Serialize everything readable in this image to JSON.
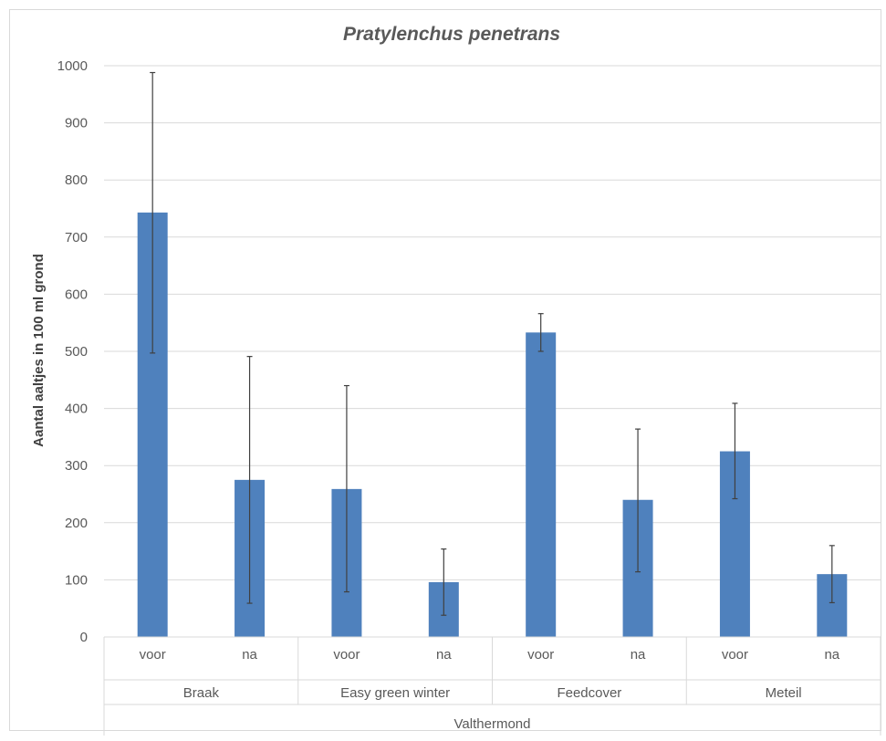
{
  "chart_data": {
    "type": "bar",
    "title": "Pratylenchus penetrans",
    "ylabel": "Aantal aaltjes in 100 ml grond",
    "xlabel": "",
    "ylim": [
      0,
      1000
    ],
    "yticks": [
      0,
      100,
      200,
      300,
      400,
      500,
      600,
      700,
      800,
      900,
      1000
    ],
    "grid": true,
    "legend": "none",
    "bar_color": "#4F81BD",
    "location": "Valthermond",
    "groups": [
      {
        "name": "Braak",
        "bars": [
          {
            "label": "voor",
            "value": 743,
            "err_low": 497,
            "err_high": 988
          },
          {
            "label": "na",
            "value": 275,
            "err_low": 59,
            "err_high": 491
          }
        ]
      },
      {
        "name": "Easy green winter",
        "bars": [
          {
            "label": "voor",
            "value": 259,
            "err_low": 79,
            "err_high": 440
          },
          {
            "label": "na",
            "value": 96,
            "err_low": 38,
            "err_high": 154
          }
        ]
      },
      {
        "name": "Feedcover",
        "bars": [
          {
            "label": "voor",
            "value": 533,
            "err_low": 500,
            "err_high": 566
          },
          {
            "label": "na",
            "value": 240,
            "err_low": 114,
            "err_high": 364
          }
        ]
      },
      {
        "name": "Meteil",
        "bars": [
          {
            "label": "voor",
            "value": 325,
            "err_low": 242,
            "err_high": 409
          },
          {
            "label": "na",
            "value": 110,
            "err_low": 60,
            "err_high": 160
          }
        ]
      }
    ]
  }
}
